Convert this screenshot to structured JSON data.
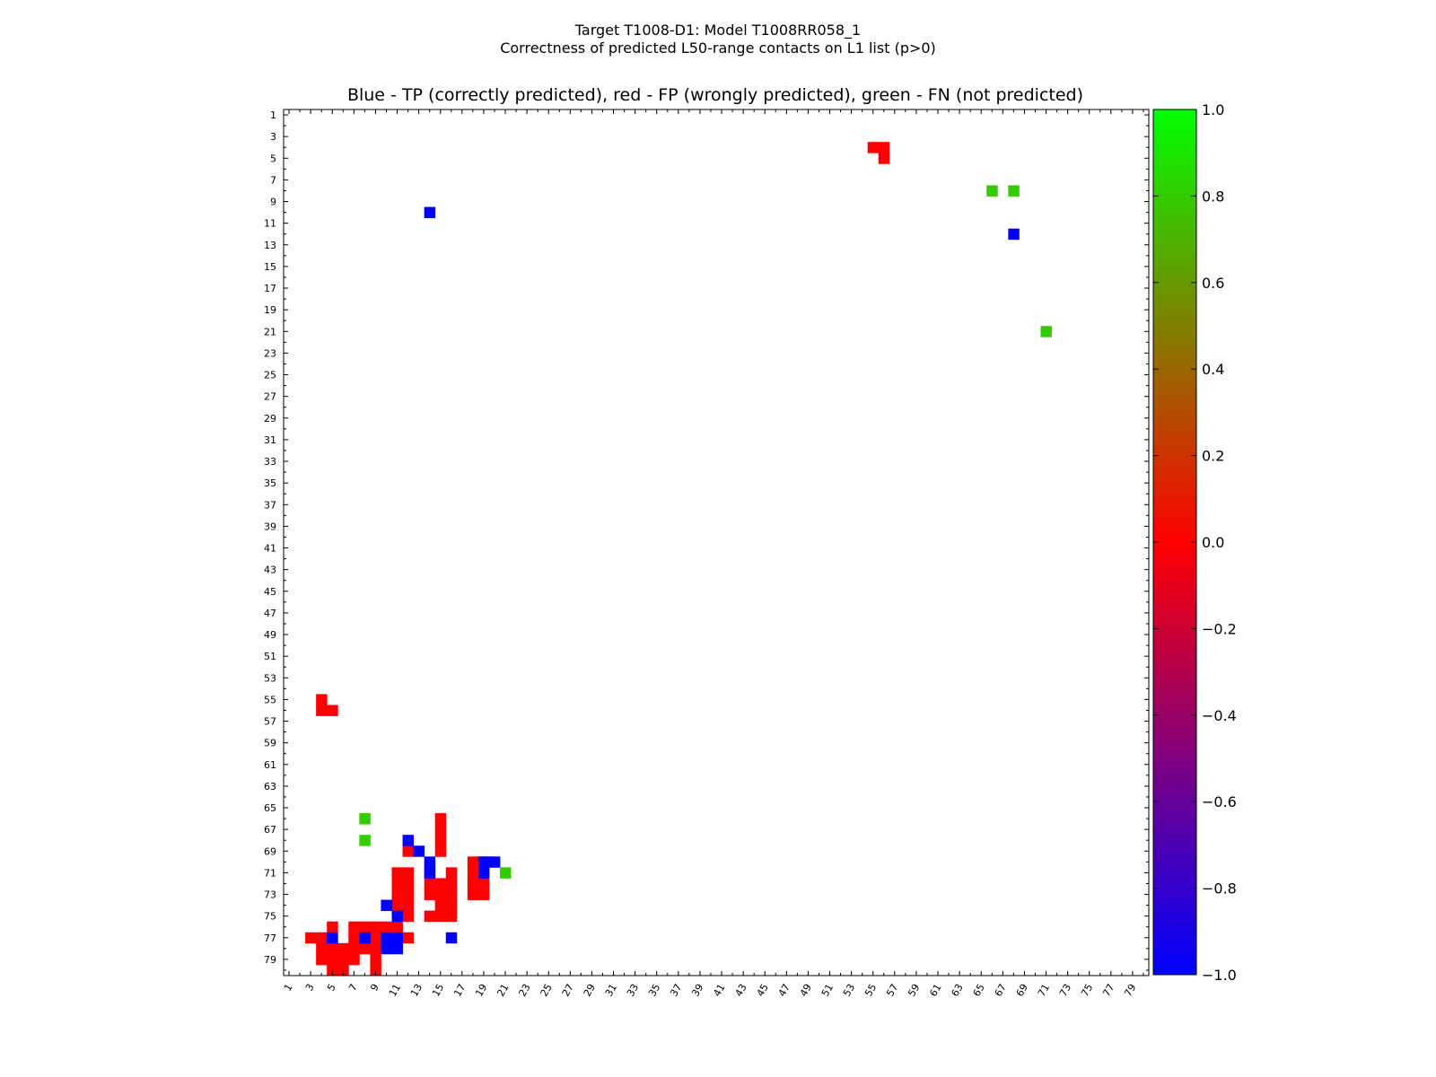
{
  "figure": {
    "suptitle_line1": "Target T1008-D1: Model T1008RR058_1",
    "suptitle_line2": "Correctness of predicted L50-range contacts on L1 list (p>0)"
  },
  "chart_data": {
    "type": "heatmap",
    "title": "Blue - TP (correctly predicted), red - FP (wrongly predicted), green - FN (not predicted)",
    "xlabel": "",
    "ylabel": "",
    "xlim": [
      1,
      80
    ],
    "ylim": [
      1,
      80
    ],
    "y_axis_inverted": true,
    "x_tick_labels": [
      "1",
      "3",
      "5",
      "7",
      "9",
      "11",
      "13",
      "15",
      "17",
      "19",
      "21",
      "23",
      "25",
      "27",
      "29",
      "31",
      "33",
      "35",
      "37",
      "39",
      "41",
      "43",
      "45",
      "47",
      "49",
      "51",
      "53",
      "55",
      "57",
      "59",
      "61",
      "63",
      "65",
      "67",
      "69",
      "71",
      "73",
      "75",
      "77",
      "79"
    ],
    "y_tick_labels": [
      "1",
      "3",
      "5",
      "7",
      "9",
      "11",
      "13",
      "15",
      "17",
      "19",
      "21",
      "23",
      "25",
      "27",
      "29",
      "31",
      "33",
      "35",
      "37",
      "39",
      "41",
      "43",
      "45",
      "47",
      "49",
      "51",
      "53",
      "55",
      "57",
      "59",
      "61",
      "63",
      "65",
      "67",
      "69",
      "71",
      "73",
      "75",
      "77",
      "79"
    ],
    "legend": [
      {
        "label": "TP (correctly predicted)",
        "value": -1,
        "color": "#0000ff"
      },
      {
        "label": "FP (wrongly predicted)",
        "value": 0,
        "color": "#ff0000"
      },
      {
        "label": "FN (not predicted)",
        "value": 1,
        "color": "#33cc00"
      }
    ],
    "colorbar": {
      "range": [
        -1.0,
        1.0
      ],
      "tick_labels": [
        "1.0",
        "0.8",
        "0.6",
        "0.4",
        "0.2",
        "0.0",
        "−0.2",
        "−0.4",
        "−0.6",
        "−0.8",
        "−1.0"
      ],
      "stops": [
        "#0000ff",
        "#ff0000",
        "#00ff00"
      ]
    },
    "cells": {
      "TP": [
        [
          5,
          77
        ],
        [
          11,
          77
        ],
        [
          8,
          77
        ],
        [
          10,
          77
        ],
        [
          14,
          71
        ],
        [
          16,
          77
        ],
        [
          13,
          69
        ],
        [
          14,
          70
        ],
        [
          12,
          68
        ],
        [
          10,
          78
        ],
        [
          11,
          78
        ],
        [
          10,
          74
        ],
        [
          11,
          75
        ],
        [
          19,
          70
        ],
        [
          20,
          70
        ],
        [
          19,
          71
        ],
        [
          14,
          10
        ],
        [
          14,
          10
        ],
        [
          68,
          12
        ]
      ],
      "FN": [
        [
          8,
          66
        ],
        [
          8,
          68
        ],
        [
          21,
          71
        ],
        [
          66,
          8
        ],
        [
          68,
          8
        ],
        [
          71,
          21
        ]
      ],
      "FP": [
        [
          4,
          55
        ],
        [
          4,
          56
        ],
        [
          5,
          56
        ],
        [
          55,
          4
        ],
        [
          56,
          4
        ],
        [
          56,
          5
        ],
        [
          3,
          77
        ],
        [
          4,
          77
        ],
        [
          4,
          78
        ],
        [
          4,
          79
        ],
        [
          5,
          78
        ],
        [
          5,
          79
        ],
        [
          5,
          80
        ],
        [
          6,
          78
        ],
        [
          6,
          79
        ],
        [
          6,
          80
        ],
        [
          7,
          76
        ],
        [
          7,
          77
        ],
        [
          7,
          78
        ],
        [
          7,
          79
        ],
        [
          8,
          76
        ],
        [
          8,
          78
        ],
        [
          9,
          76
        ],
        [
          9,
          77
        ],
        [
          9,
          78
        ],
        [
          9,
          79
        ],
        [
          9,
          80
        ],
        [
          10,
          76
        ],
        [
          11,
          76
        ],
        [
          5,
          76
        ],
        [
          12,
          69
        ],
        [
          11,
          71
        ],
        [
          11,
          72
        ],
        [
          11,
          73
        ],
        [
          11,
          74
        ],
        [
          12,
          71
        ],
        [
          12,
          72
        ],
        [
          12,
          73
        ],
        [
          12,
          74
        ],
        [
          12,
          75
        ],
        [
          11,
          77
        ],
        [
          12,
          77
        ],
        [
          14,
          71
        ],
        [
          14,
          72
        ],
        [
          14,
          73
        ],
        [
          14,
          75
        ],
        [
          15,
          66
        ],
        [
          15,
          67
        ],
        [
          15,
          68
        ],
        [
          15,
          69
        ],
        [
          15,
          72
        ],
        [
          15,
          73
        ],
        [
          15,
          74
        ],
        [
          15,
          75
        ],
        [
          16,
          71
        ],
        [
          16,
          72
        ],
        [
          16,
          73
        ],
        [
          16,
          74
        ],
        [
          16,
          75
        ],
        [
          18,
          70
        ],
        [
          18,
          71
        ],
        [
          18,
          72
        ],
        [
          18,
          73
        ],
        [
          19,
          70
        ],
        [
          19,
          71
        ],
        [
          19,
          72
        ],
        [
          19,
          73
        ]
      ]
    }
  }
}
